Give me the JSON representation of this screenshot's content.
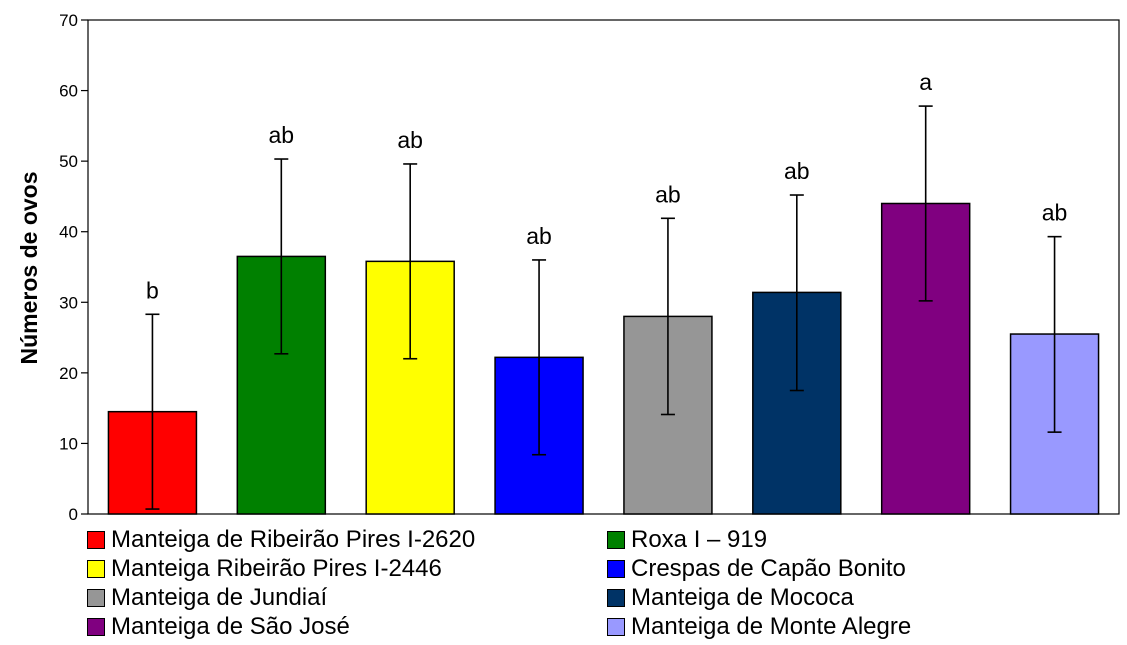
{
  "chart_data": {
    "type": "bar",
    "ylabel": "Números de ovos",
    "xlabel": "",
    "ylim": [
      0,
      70
    ],
    "yticks": [
      0,
      10,
      20,
      30,
      40,
      50,
      60,
      70
    ],
    "grid": false,
    "legend_position": "bottom",
    "categories": [
      "Manteiga de Ribeirão Pires I-2620",
      "Roxa I – 919",
      "Manteiga Ribeirão Pires I-2446",
      "Crespas de Capão Bonito",
      "Manteiga de Jundiaí",
      "Manteiga de Mococa",
      "Manteiga de São José",
      "Manteiga de Monte Alegre"
    ],
    "values": [
      14.5,
      36.5,
      35.8,
      22.2,
      28.0,
      31.4,
      44.0,
      25.5
    ],
    "error_low": [
      0.7,
      22.7,
      22.0,
      8.4,
      14.1,
      17.5,
      30.2,
      11.6
    ],
    "error_high": [
      28.3,
      50.3,
      49.6,
      36.0,
      41.9,
      45.2,
      57.8,
      39.3
    ],
    "significance_labels": [
      "b",
      "ab",
      "ab",
      "ab",
      "ab",
      "ab",
      "a",
      "ab"
    ],
    "colors": [
      "#ff0000",
      "#008000",
      "#ffff00",
      "#0000ff",
      "#969696",
      "#003366",
      "#800080",
      "#9999ff"
    ]
  },
  "legend": {
    "items": [
      {
        "label": "Manteiga de Ribeirão Pires I-2620",
        "color": "#ff0000"
      },
      {
        "label": "Roxa I – 919",
        "color": "#008000"
      },
      {
        "label": "Manteiga Ribeirão Pires I-2446",
        "color": "#ffff00"
      },
      {
        "label": "Crespas de Capão Bonito",
        "color": "#0000ff"
      },
      {
        "label": "Manteiga de Jundiaí",
        "color": "#969696"
      },
      {
        "label": "Manteiga de Mococa",
        "color": "#003366"
      },
      {
        "label": "Manteiga de São José",
        "color": "#800080"
      },
      {
        "label": "Manteiga de Monte Alegre",
        "color": "#9999ff"
      }
    ]
  }
}
